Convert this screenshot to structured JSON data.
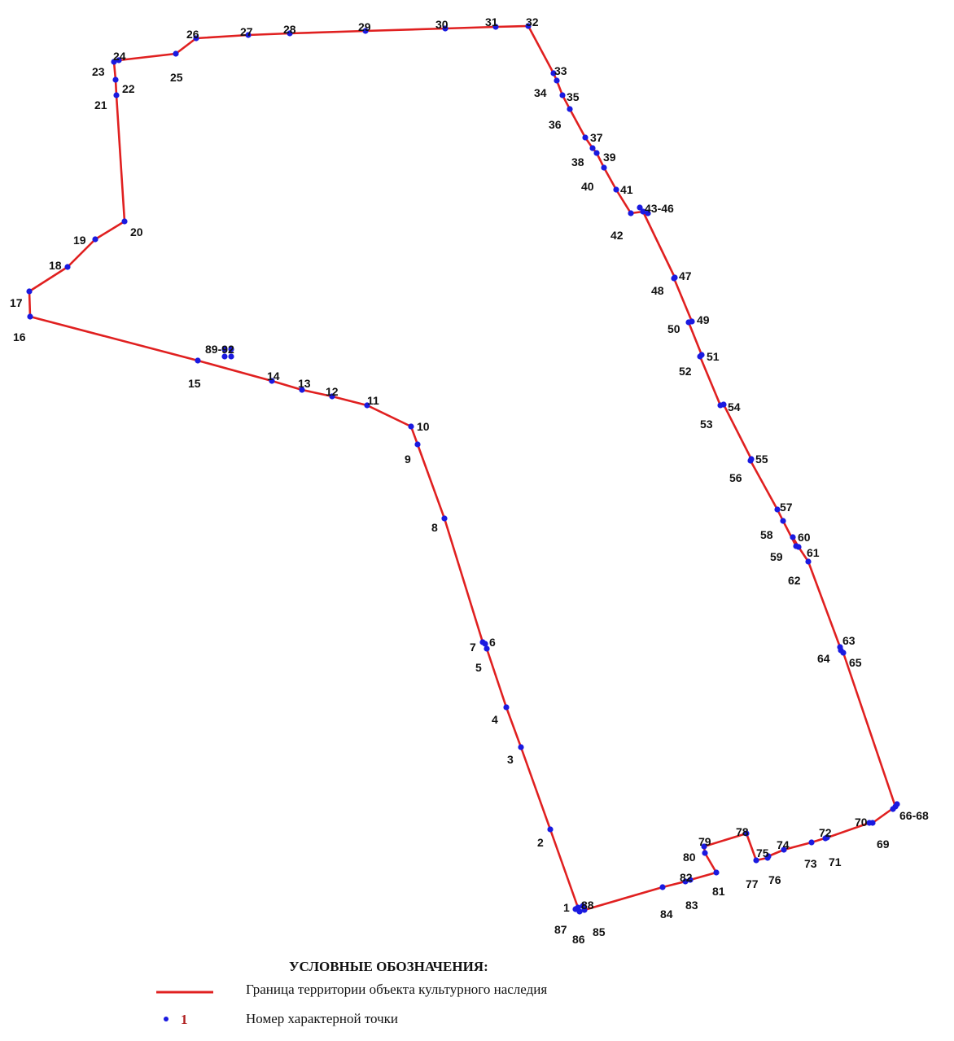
{
  "colors": {
    "boundary": "#e02020",
    "point": "#1a1ae0",
    "label": "#111111"
  },
  "points": [
    {
      "id": "1",
      "label": "1"
    },
    {
      "id": "2",
      "label": "2"
    },
    {
      "id": "3",
      "label": "3"
    },
    {
      "id": "4",
      "label": "4"
    },
    {
      "id": "5",
      "label": "5"
    },
    {
      "id": "6",
      "label": "6"
    },
    {
      "id": "7",
      "label": "7"
    },
    {
      "id": "8",
      "label": "8"
    },
    {
      "id": "9",
      "label": "9"
    },
    {
      "id": "10",
      "label": "10"
    },
    {
      "id": "11",
      "label": "11"
    },
    {
      "id": "12",
      "label": "12"
    },
    {
      "id": "13",
      "label": "13"
    },
    {
      "id": "14",
      "label": "14"
    },
    {
      "id": "15",
      "label": "15"
    },
    {
      "id": "16",
      "label": "16"
    },
    {
      "id": "17",
      "label": "17"
    },
    {
      "id": "18",
      "label": "18"
    },
    {
      "id": "19",
      "label": "19"
    },
    {
      "id": "20",
      "label": "20"
    },
    {
      "id": "21",
      "label": "21"
    },
    {
      "id": "22",
      "label": "22"
    },
    {
      "id": "23",
      "label": "23"
    },
    {
      "id": "24",
      "label": "24"
    },
    {
      "id": "25",
      "label": "25"
    },
    {
      "id": "26",
      "label": "26"
    },
    {
      "id": "27",
      "label": "27"
    },
    {
      "id": "28",
      "label": "28"
    },
    {
      "id": "29",
      "label": "29"
    },
    {
      "id": "30",
      "label": "30"
    },
    {
      "id": "31",
      "label": "31"
    },
    {
      "id": "32",
      "label": "32"
    },
    {
      "id": "33",
      "label": "33"
    },
    {
      "id": "34",
      "label": "34"
    },
    {
      "id": "35",
      "label": "35"
    },
    {
      "id": "36",
      "label": "36"
    },
    {
      "id": "37",
      "label": "37"
    },
    {
      "id": "38",
      "label": "38"
    },
    {
      "id": "39",
      "label": "39"
    },
    {
      "id": "40",
      "label": "40"
    },
    {
      "id": "41",
      "label": "41"
    },
    {
      "id": "42",
      "label": "42"
    },
    {
      "id": "43-46",
      "label": "43-46"
    },
    {
      "id": "47",
      "label": "47"
    },
    {
      "id": "48",
      "label": "48"
    },
    {
      "id": "49",
      "label": "49"
    },
    {
      "id": "50",
      "label": "50"
    },
    {
      "id": "51",
      "label": "51"
    },
    {
      "id": "52",
      "label": "52"
    },
    {
      "id": "53",
      "label": "53"
    },
    {
      "id": "54",
      "label": "54"
    },
    {
      "id": "55",
      "label": "55"
    },
    {
      "id": "56",
      "label": "56"
    },
    {
      "id": "57",
      "label": "57"
    },
    {
      "id": "58",
      "label": "58"
    },
    {
      "id": "59",
      "label": "59"
    },
    {
      "id": "60",
      "label": "60"
    },
    {
      "id": "61",
      "label": "61"
    },
    {
      "id": "62",
      "label": "62"
    },
    {
      "id": "63",
      "label": "63"
    },
    {
      "id": "64",
      "label": "64"
    },
    {
      "id": "65",
      "label": "65"
    },
    {
      "id": "66-68",
      "label": "66-68"
    },
    {
      "id": "69",
      "label": "69"
    },
    {
      "id": "70",
      "label": "70"
    },
    {
      "id": "71",
      "label": "71"
    },
    {
      "id": "72",
      "label": "72"
    },
    {
      "id": "73",
      "label": "73"
    },
    {
      "id": "74",
      "label": "74"
    },
    {
      "id": "75",
      "label": "75"
    },
    {
      "id": "76",
      "label": "76"
    },
    {
      "id": "77",
      "label": "77"
    },
    {
      "id": "78",
      "label": "78"
    },
    {
      "id": "79",
      "label": "79"
    },
    {
      "id": "80",
      "label": "80"
    },
    {
      "id": "81",
      "label": "81"
    },
    {
      "id": "82",
      "label": "82"
    },
    {
      "id": "83",
      "label": "83"
    },
    {
      "id": "84",
      "label": "84"
    },
    {
      "id": "85",
      "label": "85"
    },
    {
      "id": "86",
      "label": "86"
    },
    {
      "id": "87",
      "label": "87"
    },
    {
      "id": "88",
      "label": "88"
    },
    {
      "id": "89-92",
      "label": "89-92"
    }
  ],
  "legend": {
    "title": "УСЛОВНЫЕ ОБОЗНАЧЕНИЯ:",
    "boundary_label": "Граница территории объекта культурного наследия",
    "point_label": "Номер характерной точки",
    "point_sample": "1"
  }
}
